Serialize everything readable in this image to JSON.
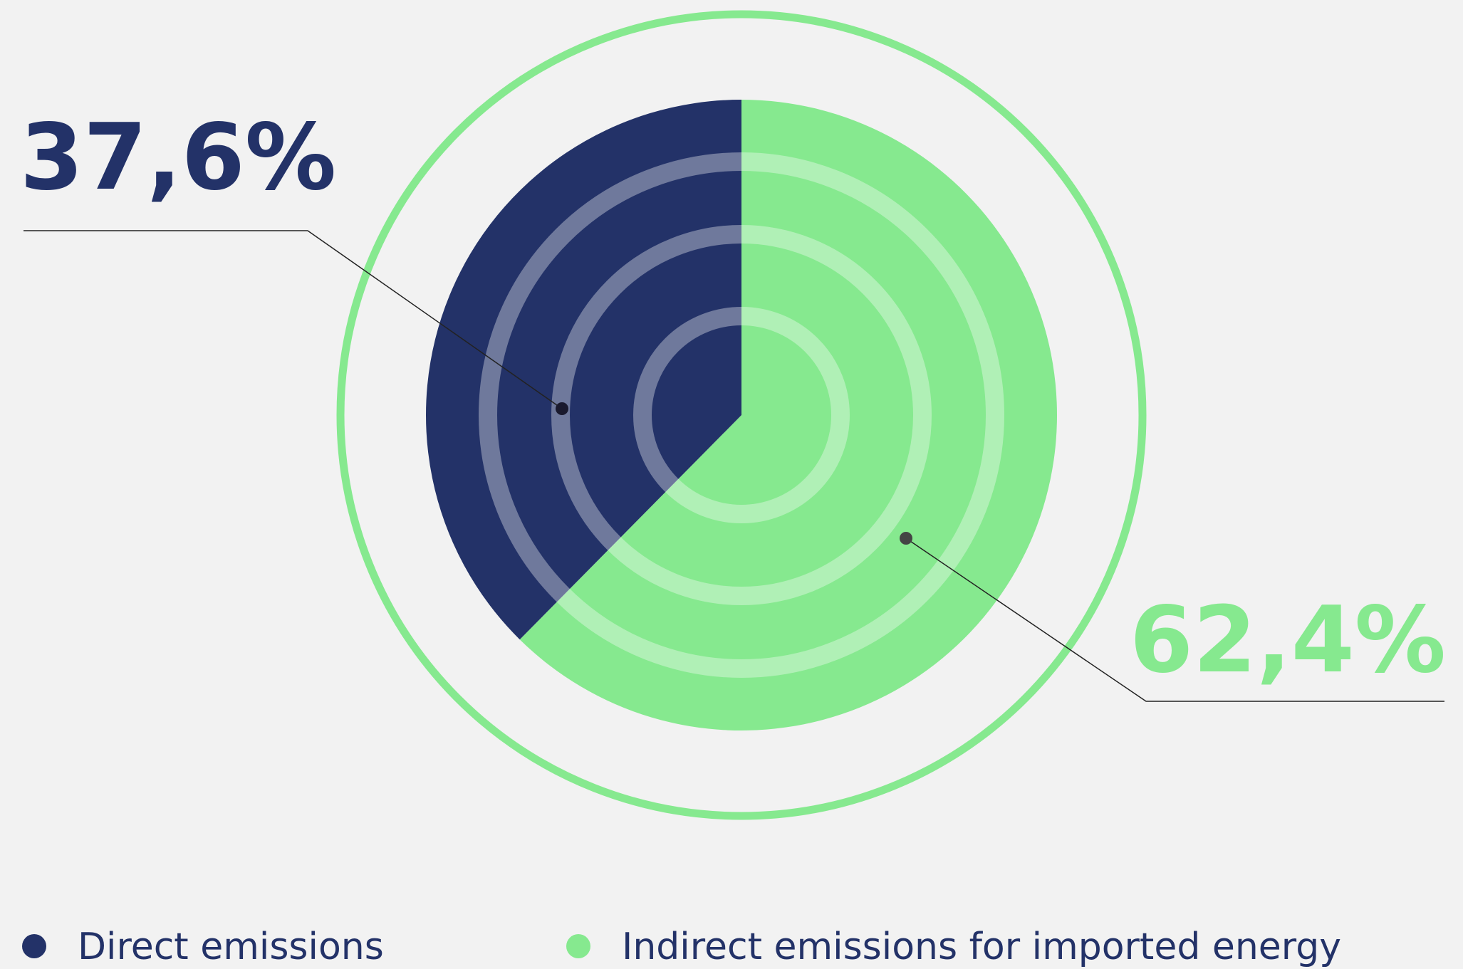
{
  "chart_data": {
    "type": "pie",
    "categories": [
      "Direct emissions",
      "Indirect emissions for imported energy"
    ],
    "values": [
      37.6,
      62.4
    ],
    "value_labels": [
      "37,6%",
      "62,4%"
    ],
    "colors": [
      "#233268",
      "#86e98f"
    ]
  }
}
